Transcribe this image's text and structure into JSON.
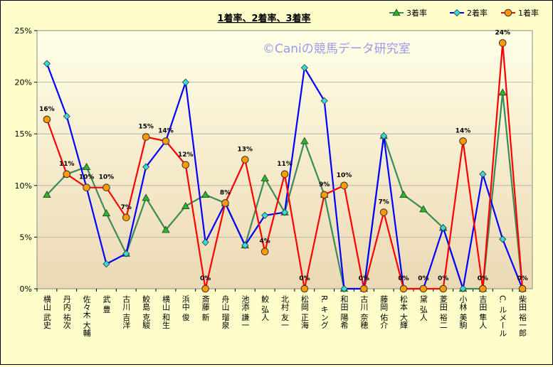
{
  "chart_data": {
    "type": "line",
    "title": "1着率、2着率、3着率",
    "watermark": "©Caniの競馬データ研究室",
    "ylim": [
      0,
      25
    ],
    "yticks": [
      "0%",
      "5%",
      "10%",
      "15%",
      "20%",
      "25%"
    ],
    "grid": "horizontal",
    "legend_position": "top-right",
    "categories": [
      "横山 武史",
      "丹内 祐次",
      "佐々木 大輔",
      "武 豊",
      "古川 吉洋",
      "鮫島 克駿",
      "横山 和生",
      "浜中 俊",
      "斎藤 新",
      "舟山 瑠泉",
      "池添 謙一",
      "鮫 弘人",
      "北村 友一",
      "松岡 正海",
      "R. キング",
      "和田 陽希",
      "古川 奈穂",
      "藤岡 佑介",
      "松本 大輝",
      "黛 弘人",
      "菱田 裕二",
      "小林 美駒",
      "吉田 隼人",
      "C. ルメール",
      "柴田 裕一郎"
    ],
    "series": [
      {
        "name": "3着率",
        "color": "#3a8a5a",
        "marker": "triangle",
        "marker_color": "#22bb22",
        "values": [
          9.1,
          11.1,
          11.8,
          7.3,
          3.4,
          8.8,
          5.7,
          8.0,
          9.1,
          8.3,
          4.2,
          10.7,
          7.4,
          14.3,
          9.1,
          0,
          0,
          14.8,
          9.1,
          7.7,
          5.9,
          0,
          0,
          19.0,
          0
        ]
      },
      {
        "name": "2着率",
        "color": "#0000ff",
        "marker": "diamond",
        "marker_color": "#33dddd",
        "values": [
          21.8,
          16.7,
          9.8,
          2.4,
          3.4,
          11.8,
          14.3,
          20.0,
          4.5,
          8.3,
          4.2,
          7.1,
          7.4,
          21.4,
          18.2,
          0,
          0,
          14.8,
          0,
          0,
          5.9,
          0,
          11.1,
          4.8,
          0
        ]
      },
      {
        "name": "1着率",
        "color": "#ff0000",
        "marker": "circle",
        "marker_color": "#ff9900",
        "values": [
          16.4,
          11.1,
          9.8,
          9.8,
          6.9,
          14.7,
          14.3,
          12.0,
          0,
          8.3,
          12.5,
          3.6,
          11.1,
          0,
          9.1,
          10.0,
          0,
          7.4,
          0,
          0,
          0,
          14.3,
          0,
          23.8,
          0
        ]
      }
    ],
    "data_labels": [
      "16%",
      "11%",
      "10%",
      "10%",
      "7%",
      "15%",
      "14%",
      "12%",
      "0%",
      "8%",
      "13%",
      "4%",
      "11%",
      "0%",
      "9%",
      "10%",
      "0%",
      "7%",
      "0%",
      "0%",
      "0%",
      "14%",
      "0%",
      "24%",
      "0%"
    ]
  }
}
